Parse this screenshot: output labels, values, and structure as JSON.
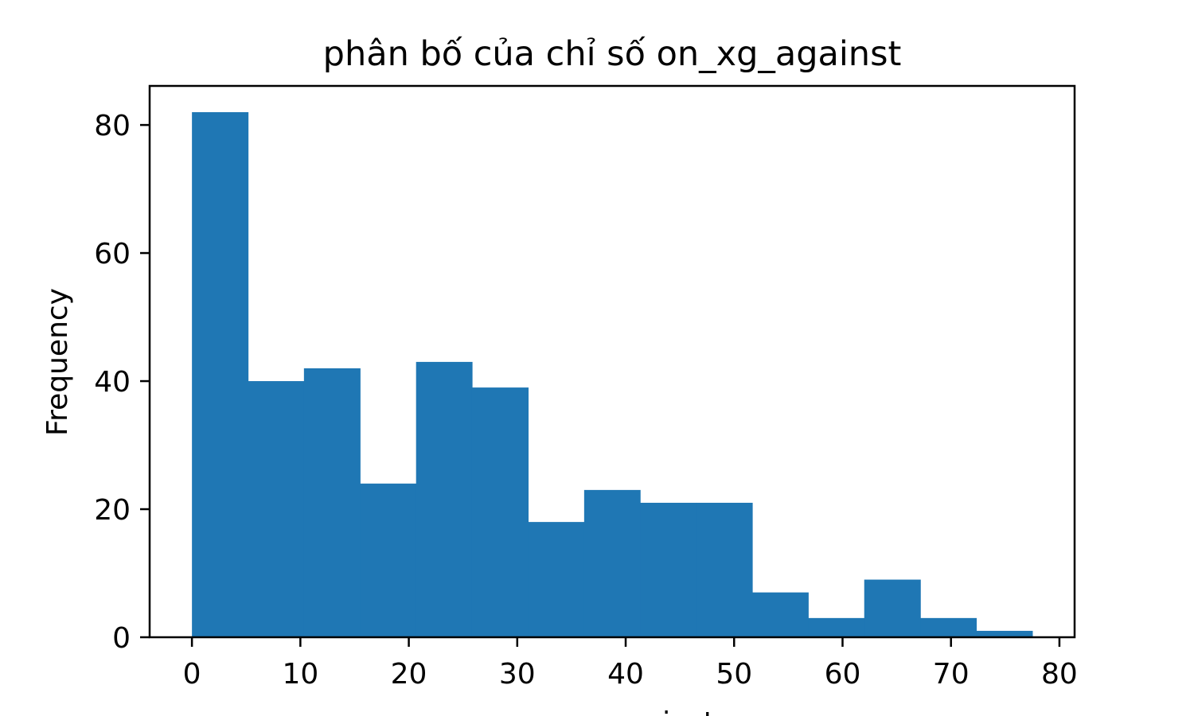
{
  "chart_data": {
    "type": "bar",
    "title": "phân bố của chỉ số on_xg_against",
    "xlabel": "on_xg_against",
    "ylabel": "Frequency",
    "xlim": [
      -3.9,
      81.4
    ],
    "ylim": [
      0,
      86.1
    ],
    "xticks": [
      0,
      10,
      20,
      30,
      40,
      50,
      60,
      70,
      80
    ],
    "yticks": [
      0,
      20,
      40,
      60,
      80
    ],
    "bin_edges": [
      0,
      5.17,
      10.33,
      15.5,
      20.67,
      25.83,
      31.0,
      36.17,
      41.33,
      46.5,
      51.67,
      56.83,
      62.0,
      67.17,
      72.33,
      77.5
    ],
    "values": [
      82,
      40,
      42,
      24,
      43,
      39,
      18,
      23,
      21,
      21,
      7,
      3,
      9,
      3,
      1
    ],
    "color": "#1f77b4",
    "grid": false,
    "legend": "none"
  }
}
